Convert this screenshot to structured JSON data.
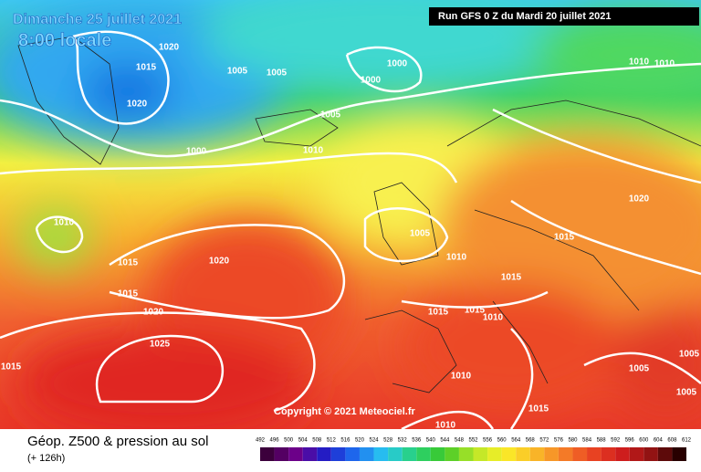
{
  "header": {
    "valid_date": "Dimanche 25 juillet 2021",
    "local_time": "8:00 locale",
    "run": "Run GFS 0 Z du Mardi 20 juillet 2021"
  },
  "copyright": "Copyright © 2021 Meteociel.fr",
  "footer": {
    "title": "Géop. Z500 & pression au sol",
    "lead": "(+ 126h)"
  },
  "scale": [
    492,
    496,
    500,
    504,
    508,
    512,
    516,
    520,
    524,
    528,
    532,
    536,
    540,
    544,
    548,
    552,
    556,
    560,
    564,
    568,
    572,
    576,
    580,
    584,
    588,
    592,
    596,
    600,
    604,
    608,
    612
  ],
  "isobar_labels": [
    1020,
    1015,
    1005,
    1005,
    1000,
    1000,
    1020,
    1005,
    1000,
    1010,
    1010,
    1010,
    1020,
    1010,
    1005,
    1015,
    1010,
    1015,
    1020,
    1015,
    1015,
    1015,
    1015,
    1010,
    1020,
    1025,
    1015,
    1010,
    1005,
    1005,
    1015,
    1010,
    1005
  ]
}
